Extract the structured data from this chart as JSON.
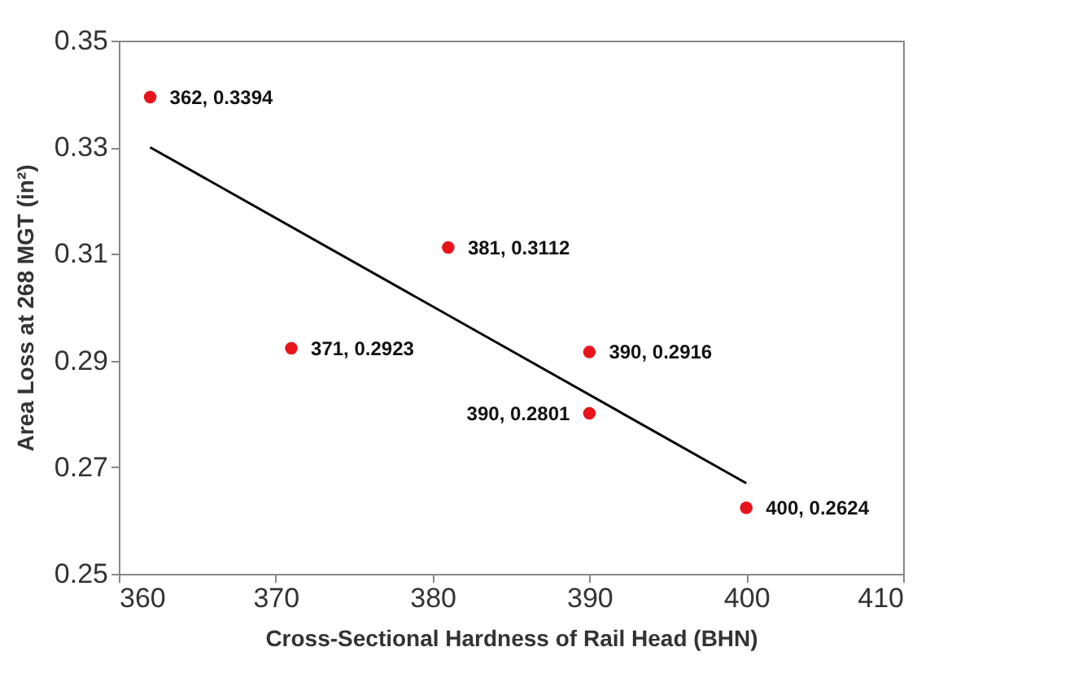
{
  "chart_data": {
    "type": "scatter",
    "xlabel": "Cross-Sectional Hardness of Rail Head (BHN)",
    "ylabel": "Area Loss at 268 MGT (in²)",
    "xlim": [
      360,
      410
    ],
    "xticks": [
      360,
      370,
      380,
      390,
      400,
      410
    ],
    "ylim": [
      0.25,
      0.35
    ],
    "yticks": [
      0.25,
      0.27,
      0.29,
      0.31,
      0.33,
      0.35
    ],
    "grid": false,
    "series": [
      {
        "color": "#e8141c",
        "marker": "circle",
        "x": [
          362,
          371,
          381,
          390,
          390,
          400
        ],
        "values": [
          0.3394,
          0.2923,
          0.3112,
          0.2916,
          0.2801,
          0.2624
        ],
        "value_labels": [
          "362, 0.3394",
          "371, 0.2923",
          "381, 0.3112",
          "390, 0.2916",
          "390, 0.2801",
          "400, 0.2624"
        ]
      },
      {
        "type": "line",
        "color": "#000000",
        "x": [
          362,
          400
        ],
        "values": [
          0.33,
          0.267
        ]
      }
    ]
  }
}
